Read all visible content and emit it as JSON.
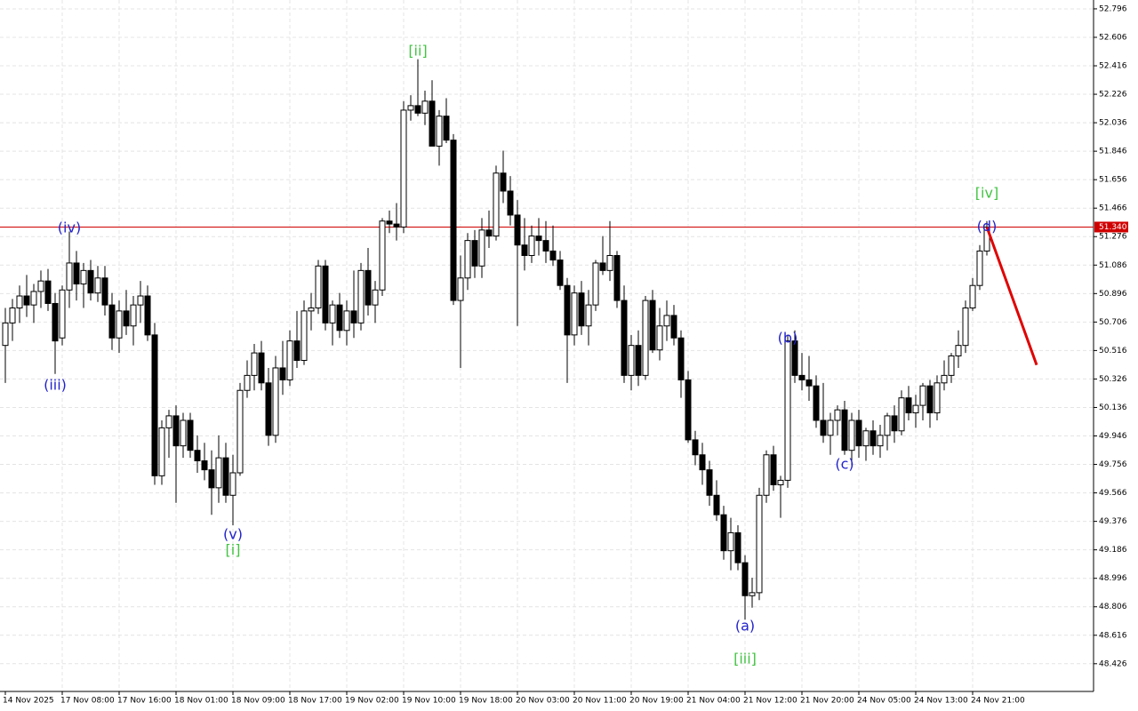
{
  "chart_data": {
    "type": "candlestick",
    "ylim": [
      48.241,
      52.855
    ],
    "yticks": [
      48.426,
      48.616,
      48.806,
      48.996,
      49.186,
      49.376,
      49.566,
      49.756,
      49.946,
      50.136,
      50.326,
      50.516,
      50.706,
      50.896,
      51.086,
      51.276,
      51.466,
      51.656,
      51.846,
      52.036,
      52.226,
      52.416,
      52.606,
      52.796
    ],
    "grid": true,
    "up_color": "#ffffff",
    "down_color": "#000000",
    "categories": [
      "14 Nov 2025",
      null,
      null,
      null,
      null,
      null,
      null,
      null,
      "17 Nov 08:00",
      null,
      null,
      null,
      null,
      null,
      null,
      null,
      "17 Nov 16:00",
      null,
      null,
      null,
      null,
      null,
      null,
      null,
      "18 Nov 01:00",
      null,
      null,
      null,
      null,
      null,
      null,
      null,
      "18 Nov 09:00",
      null,
      null,
      null,
      null,
      null,
      null,
      null,
      "18 Nov 17:00",
      null,
      null,
      null,
      null,
      null,
      null,
      null,
      "19 Nov 02:00",
      null,
      null,
      null,
      null,
      null,
      null,
      null,
      "19 Nov 10:00",
      null,
      null,
      null,
      null,
      null,
      null,
      null,
      "19 Nov 18:00",
      null,
      null,
      null,
      null,
      null,
      null,
      null,
      "20 Nov 03:00",
      null,
      null,
      null,
      null,
      null,
      null,
      null,
      "20 Nov 11:00",
      null,
      null,
      null,
      null,
      null,
      null,
      null,
      "20 Nov 19:00",
      null,
      null,
      null,
      null,
      null,
      null,
      null,
      "21 Nov 04:00",
      null,
      null,
      null,
      null,
      null,
      null,
      null,
      "21 Nov 12:00",
      null,
      null,
      null,
      null,
      null,
      null,
      null,
      "21 Nov 20:00",
      null,
      null,
      null,
      null,
      null,
      null,
      null,
      "24 Nov 05:00",
      null,
      null,
      null,
      null,
      null,
      null,
      null,
      "24 Nov 13:00",
      null,
      null,
      null,
      null,
      null,
      null,
      null,
      "24 Nov 21:00",
      null,
      null
    ],
    "ohlc": [
      [
        50.55,
        50.8,
        50.3,
        50.7
      ],
      [
        50.7,
        50.86,
        50.58,
        50.8
      ],
      [
        50.8,
        50.95,
        50.7,
        50.88
      ],
      [
        50.88,
        51.02,
        50.74,
        50.82
      ],
      [
        50.82,
        50.96,
        50.7,
        50.91
      ],
      [
        50.91,
        51.05,
        50.8,
        50.98
      ],
      [
        50.98,
        51.06,
        50.78,
        50.83
      ],
      [
        50.83,
        50.9,
        50.36,
        50.58
      ],
      [
        50.6,
        50.95,
        50.55,
        50.92
      ],
      [
        50.92,
        51.31,
        50.8,
        51.1
      ],
      [
        51.1,
        51.18,
        50.85,
        50.96
      ],
      [
        50.96,
        51.1,
        50.8,
        51.05
      ],
      [
        51.05,
        51.12,
        50.85,
        50.9
      ],
      [
        50.9,
        51.08,
        50.84,
        51.0
      ],
      [
        51.0,
        51.08,
        50.75,
        50.82
      ],
      [
        50.82,
        50.9,
        50.52,
        50.6
      ],
      [
        50.6,
        50.85,
        50.5,
        50.78
      ],
      [
        50.78,
        50.92,
        50.62,
        50.68
      ],
      [
        50.68,
        50.88,
        50.55,
        50.82
      ],
      [
        50.82,
        50.98,
        50.7,
        50.88
      ],
      [
        50.88,
        50.95,
        50.58,
        50.62
      ],
      [
        50.62,
        50.7,
        49.62,
        49.68
      ],
      [
        49.68,
        50.05,
        49.62,
        50.0
      ],
      [
        50.0,
        50.12,
        49.8,
        50.08
      ],
      [
        50.08,
        50.15,
        49.5,
        49.88
      ],
      [
        49.88,
        50.1,
        49.8,
        50.05
      ],
      [
        50.05,
        50.1,
        49.8,
        49.85
      ],
      [
        49.85,
        49.95,
        49.7,
        49.78
      ],
      [
        49.78,
        49.9,
        49.65,
        49.72
      ],
      [
        49.72,
        49.85,
        49.42,
        49.6
      ],
      [
        49.6,
        49.95,
        49.5,
        49.8
      ],
      [
        49.8,
        49.9,
        49.5,
        49.55
      ],
      [
        49.55,
        49.82,
        49.35,
        49.7
      ],
      [
        49.7,
        50.3,
        49.68,
        50.25
      ],
      [
        50.25,
        50.45,
        50.2,
        50.35
      ],
      [
        50.35,
        50.56,
        50.25,
        50.5
      ],
      [
        50.5,
        50.58,
        50.25,
        50.3
      ],
      [
        50.3,
        50.4,
        49.88,
        49.95
      ],
      [
        49.95,
        50.48,
        49.9,
        50.4
      ],
      [
        50.4,
        50.58,
        50.22,
        50.32
      ],
      [
        50.32,
        50.65,
        50.28,
        50.58
      ],
      [
        50.58,
        50.78,
        50.4,
        50.45
      ],
      [
        50.45,
        50.85,
        50.42,
        50.78
      ],
      [
        50.78,
        50.9,
        50.65,
        50.8
      ],
      [
        50.8,
        51.12,
        50.76,
        51.08
      ],
      [
        51.08,
        51.12,
        50.65,
        50.7
      ],
      [
        50.7,
        50.85,
        50.55,
        50.82
      ],
      [
        50.82,
        50.9,
        50.6,
        50.65
      ],
      [
        50.65,
        50.85,
        50.55,
        50.78
      ],
      [
        50.78,
        51.05,
        50.6,
        50.7
      ],
      [
        50.7,
        51.1,
        50.65,
        51.05
      ],
      [
        51.05,
        51.2,
        50.75,
        50.82
      ],
      [
        50.82,
        50.98,
        50.7,
        50.92
      ],
      [
        50.92,
        51.4,
        50.88,
        51.38
      ],
      [
        51.38,
        51.45,
        51.3,
        51.36
      ],
      [
        51.36,
        51.5,
        51.25,
        51.34
      ],
      [
        51.34,
        52.18,
        51.3,
        52.12
      ],
      [
        52.12,
        52.22,
        52.05,
        52.15
      ],
      [
        52.15,
        52.46,
        52.08,
        52.1
      ],
      [
        52.1,
        52.25,
        52.02,
        52.18
      ],
      [
        52.18,
        52.32,
        51.9,
        51.88
      ],
      [
        51.88,
        52.12,
        51.75,
        52.08
      ],
      [
        52.08,
        52.2,
        51.9,
        51.92
      ],
      [
        51.92,
        51.96,
        50.82,
        50.85
      ],
      [
        50.85,
        51.15,
        50.4,
        51.0
      ],
      [
        51.0,
        51.3,
        50.92,
        51.25
      ],
      [
        51.25,
        51.32,
        51.0,
        51.08
      ],
      [
        51.08,
        51.4,
        51.0,
        51.32
      ],
      [
        51.32,
        51.45,
        51.2,
        51.28
      ],
      [
        51.28,
        51.75,
        51.25,
        51.7
      ],
      [
        51.7,
        51.85,
        51.5,
        51.58
      ],
      [
        51.58,
        51.68,
        51.35,
        51.42
      ],
      [
        51.42,
        51.52,
        50.68,
        51.22
      ],
      [
        51.22,
        51.4,
        51.05,
        51.15
      ],
      [
        51.15,
        51.35,
        51.1,
        51.28
      ],
      [
        51.28,
        51.4,
        51.15,
        51.25
      ],
      [
        51.25,
        51.38,
        51.1,
        51.18
      ],
      [
        51.18,
        51.35,
        51.08,
        51.12
      ],
      [
        51.12,
        51.18,
        50.92,
        50.95
      ],
      [
        50.95,
        51.0,
        50.3,
        50.62
      ],
      [
        50.62,
        50.95,
        50.55,
        50.9
      ],
      [
        50.9,
        50.98,
        50.62,
        50.68
      ],
      [
        50.68,
        50.92,
        50.55,
        50.82
      ],
      [
        50.82,
        51.12,
        50.78,
        51.1
      ],
      [
        51.1,
        51.28,
        51.02,
        51.05
      ],
      [
        51.05,
        51.38,
        50.98,
        51.15
      ],
      [
        51.15,
        51.18,
        50.8,
        50.85
      ],
      [
        50.85,
        50.95,
        50.3,
        50.35
      ],
      [
        50.35,
        50.62,
        50.25,
        50.55
      ],
      [
        50.55,
        50.65,
        50.28,
        50.35
      ],
      [
        50.35,
        50.88,
        50.32,
        50.85
      ],
      [
        50.85,
        50.92,
        50.5,
        50.52
      ],
      [
        50.52,
        50.8,
        50.45,
        50.68
      ],
      [
        50.68,
        50.85,
        50.58,
        50.75
      ],
      [
        50.75,
        50.82,
        50.55,
        50.6
      ],
      [
        50.6,
        50.65,
        50.2,
        50.32
      ],
      [
        50.32,
        50.38,
        49.9,
        49.92
      ],
      [
        49.92,
        49.98,
        49.75,
        49.82
      ],
      [
        49.82,
        49.9,
        49.62,
        49.72
      ],
      [
        49.72,
        49.78,
        49.48,
        49.55
      ],
      [
        49.55,
        49.65,
        49.38,
        49.42
      ],
      [
        49.42,
        49.48,
        49.12,
        49.18
      ],
      [
        49.18,
        49.4,
        49.05,
        49.3
      ],
      [
        49.3,
        49.35,
        49.05,
        49.1
      ],
      [
        49.1,
        49.15,
        48.72,
        48.88
      ],
      [
        48.88,
        49.0,
        48.8,
        48.9
      ],
      [
        48.9,
        49.6,
        48.85,
        49.55
      ],
      [
        49.55,
        49.85,
        49.5,
        49.82
      ],
      [
        49.82,
        49.88,
        49.58,
        49.62
      ],
      [
        49.62,
        49.68,
        49.4,
        49.65
      ],
      [
        49.65,
        50.62,
        49.6,
        50.58
      ],
      [
        50.58,
        50.65,
        50.3,
        50.35
      ],
      [
        50.35,
        50.5,
        50.25,
        50.32
      ],
      [
        50.32,
        50.48,
        50.18,
        50.28
      ],
      [
        50.28,
        50.35,
        50.0,
        50.05
      ],
      [
        50.05,
        50.3,
        49.9,
        49.95
      ],
      [
        49.95,
        50.1,
        49.82,
        50.05
      ],
      [
        50.05,
        50.15,
        49.95,
        50.12
      ],
      [
        50.12,
        50.18,
        49.82,
        49.85
      ],
      [
        49.85,
        50.1,
        49.75,
        50.05
      ],
      [
        50.05,
        50.12,
        49.8,
        49.88
      ],
      [
        49.88,
        50.0,
        49.78,
        49.98
      ],
      [
        49.98,
        50.05,
        49.82,
        49.88
      ],
      [
        49.88,
        50.02,
        49.8,
        49.95
      ],
      [
        49.95,
        50.1,
        49.85,
        50.08
      ],
      [
        50.08,
        50.15,
        49.9,
        49.98
      ],
      [
        49.98,
        50.25,
        49.95,
        50.2
      ],
      [
        50.2,
        50.28,
        50.05,
        50.1
      ],
      [
        50.1,
        50.22,
        50.0,
        50.15
      ],
      [
        50.15,
        50.3,
        50.05,
        50.28
      ],
      [
        50.28,
        50.32,
        50.0,
        50.1
      ],
      [
        50.1,
        50.35,
        50.05,
        50.3
      ],
      [
        50.3,
        50.45,
        50.25,
        50.35
      ],
      [
        50.35,
        50.5,
        50.3,
        50.48
      ],
      [
        50.48,
        50.65,
        50.4,
        50.55
      ],
      [
        50.55,
        50.85,
        50.5,
        50.8
      ],
      [
        50.8,
        51.0,
        50.78,
        50.95
      ],
      [
        50.95,
        51.22,
        50.92,
        51.18
      ],
      [
        51.18,
        51.38,
        51.15,
        51.34
      ]
    ],
    "price_line": {
      "value": 51.34,
      "label": "51.340",
      "color": "#d00000"
    },
    "forecast": {
      "x": [
        138,
        145
      ],
      "values": [
        51.34,
        50.42
      ],
      "color": "#e00000"
    },
    "annotations": [
      {
        "text": "(iii)",
        "x": 7,
        "y": 50.28,
        "color": "#2222cc"
      },
      {
        "text": "(iv)",
        "x": 9,
        "y": 51.33,
        "color": "#2222cc"
      },
      {
        "text": "(v)",
        "x": 32,
        "y": 49.285,
        "color": "#2222cc"
      },
      {
        "text": "[i]",
        "x": 32,
        "y": 49.18,
        "color": "#44c444"
      },
      {
        "text": "[ii]",
        "x": 58,
        "y": 52.51,
        "color": "#44c444"
      },
      {
        "text": "(a)",
        "x": 104,
        "y": 48.675,
        "color": "#2222cc"
      },
      {
        "text": "[iii]",
        "x": 104,
        "y": 48.455,
        "color": "#44c444"
      },
      {
        "text": "(b)",
        "x": 110,
        "y": 50.596,
        "color": "#2222cc"
      },
      {
        "text": "(c)",
        "x": 118,
        "y": 49.753,
        "color": "#2222cc"
      },
      {
        "text": "[iv]",
        "x": 138,
        "y": 51.562,
        "color": "#44c444"
      },
      {
        "text": "(d)",
        "x": 138,
        "y": 51.34,
        "color": "#2222cc"
      }
    ]
  }
}
